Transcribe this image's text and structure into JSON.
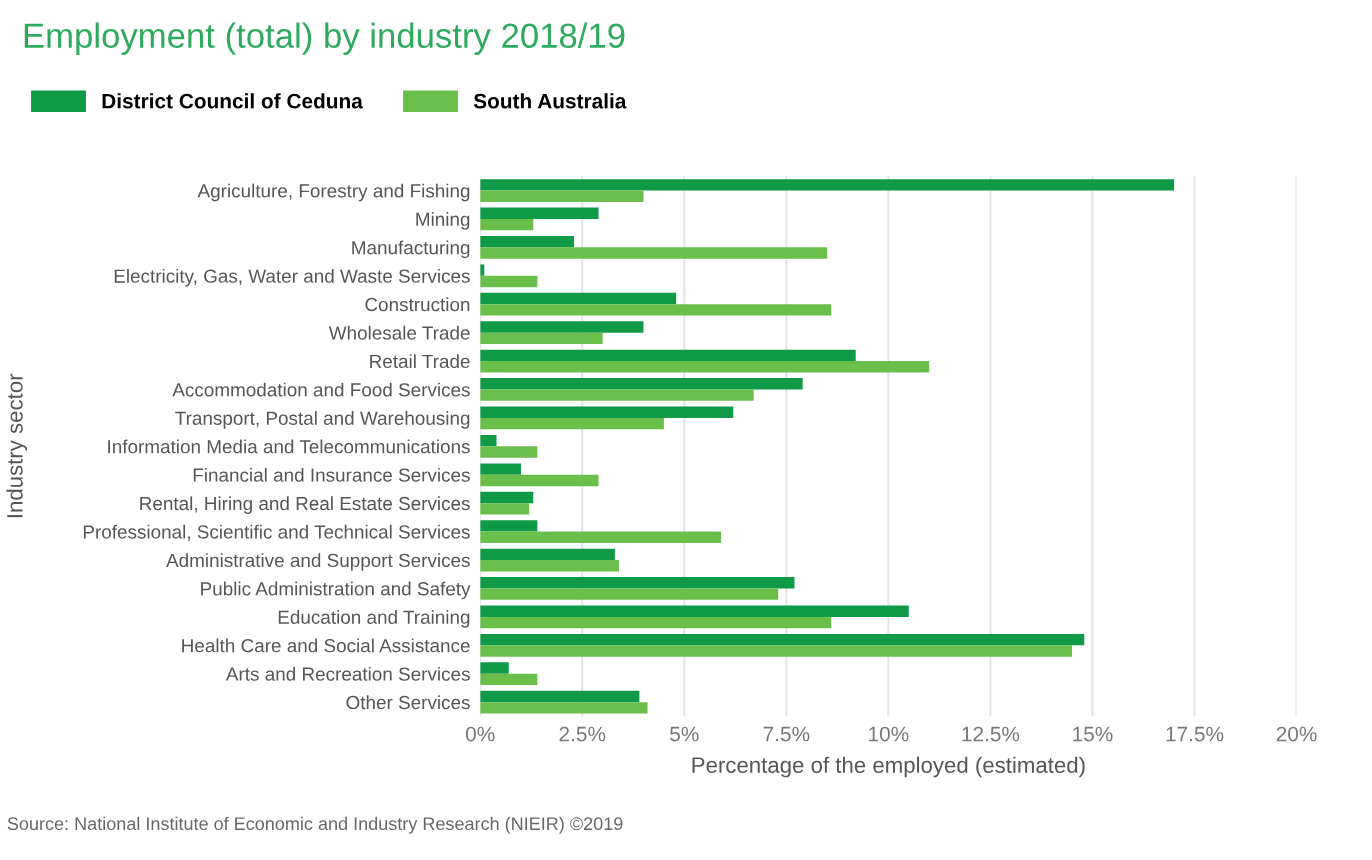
{
  "chart_data": {
    "type": "bar",
    "orientation": "horizontal",
    "title": "Employment (total) by industry 2018/19",
    "xlabel": "Percentage of the employed (estimated)",
    "ylabel": "Industry sector",
    "categories": [
      "Agriculture, Forestry and Fishing",
      "Mining",
      "Manufacturing",
      "Electricity, Gas, Water and Waste Services",
      "Construction",
      "Wholesale Trade",
      "Retail Trade",
      "Accommodation and Food Services",
      "Transport, Postal and Warehousing",
      "Information Media and Telecommunications",
      "Financial and Insurance Services",
      "Rental, Hiring and Real Estate Services",
      "Professional, Scientific and Technical Services",
      "Administrative and Support Services",
      "Public Administration and Safety",
      "Education and Training",
      "Health Care and Social Assistance",
      "Arts and Recreation Services",
      "Other Services"
    ],
    "series": [
      {
        "name": "District Council of Ceduna",
        "color": "#0f9a48",
        "values": [
          17.0,
          2.9,
          2.3,
          0.1,
          4.8,
          4.0,
          9.2,
          7.9,
          6.2,
          0.4,
          1.0,
          1.3,
          1.4,
          3.3,
          7.7,
          10.5,
          14.8,
          0.7,
          3.9
        ]
      },
      {
        "name": "South Australia",
        "color": "#6abf4b",
        "values": [
          4.0,
          1.3,
          8.5,
          1.4,
          8.6,
          3.0,
          11.0,
          6.7,
          4.5,
          1.4,
          2.9,
          1.2,
          5.9,
          3.4,
          7.3,
          8.6,
          14.5,
          1.4,
          4.1
        ]
      }
    ],
    "xlim": [
      0,
      20
    ],
    "xticks": [
      {
        "value": 0,
        "label": "0%"
      },
      {
        "value": 2.5,
        "label": "2.5%"
      },
      {
        "value": 5,
        "label": "5%"
      },
      {
        "value": 7.5,
        "label": "7.5%"
      },
      {
        "value": 10,
        "label": "10%"
      },
      {
        "value": 12.5,
        "label": "12.5%"
      },
      {
        "value": 15,
        "label": "15%"
      },
      {
        "value": 17.5,
        "label": "17.5%"
      },
      {
        "value": 20,
        "label": "20%"
      }
    ],
    "grid": "x",
    "legend": "top left",
    "annotations": [
      "Source: National Institute of Economic and Industry Research (NIEIR) ©2019"
    ]
  }
}
